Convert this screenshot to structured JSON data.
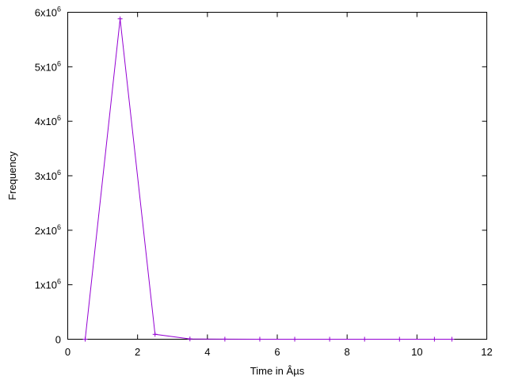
{
  "chart_data": {
    "type": "line",
    "title": "",
    "xlabel": "Time in Âµs",
    "ylabel": "Frequency",
    "xlim": [
      0,
      12
    ],
    "ylim": [
      0,
      6000000
    ],
    "x_ticks": [
      0,
      2,
      4,
      6,
      8,
      10,
      12
    ],
    "y_ticks": [
      {
        "value": 0,
        "base": "0",
        "exp": ""
      },
      {
        "value": 1000000,
        "base": "1x10",
        "exp": "6"
      },
      {
        "value": 2000000,
        "base": "2x10",
        "exp": "6"
      },
      {
        "value": 3000000,
        "base": "3x10",
        "exp": "6"
      },
      {
        "value": 4000000,
        "base": "4x10",
        "exp": "6"
      },
      {
        "value": 5000000,
        "base": "5x10",
        "exp": "6"
      },
      {
        "value": 6000000,
        "base": "6x10",
        "exp": "6"
      }
    ],
    "grid": false,
    "legend": false,
    "marker": "plus",
    "color": "#9400d3",
    "series": [
      {
        "x": [
          0.5,
          1.5,
          2.5,
          3.5,
          4.5,
          5.5,
          6.5,
          7.5,
          8.5,
          9.5,
          10.5,
          11.0
        ],
        "y": [
          0,
          5880000,
          90000,
          5000,
          1000,
          500,
          200,
          100,
          50,
          20,
          10,
          5
        ]
      }
    ]
  }
}
